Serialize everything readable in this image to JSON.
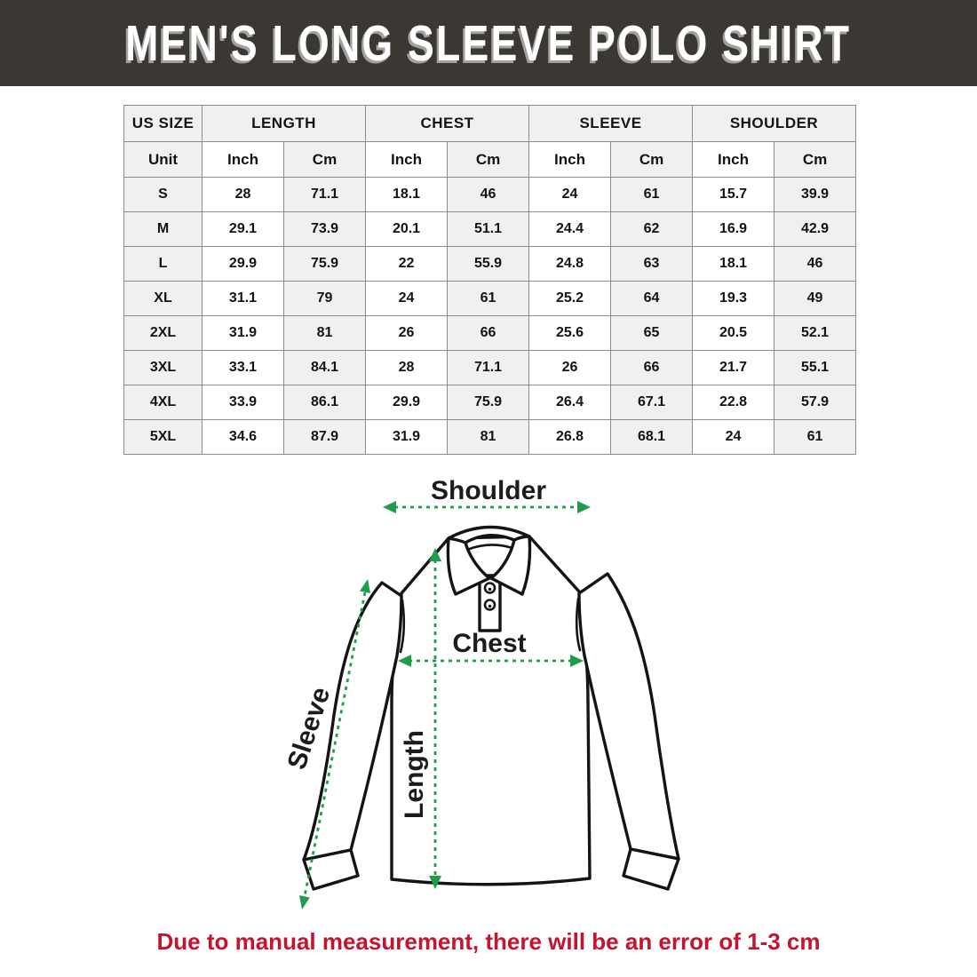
{
  "header": {
    "title": "MEN'S LONG SLEEVE POLO SHIRT"
  },
  "size_table": {
    "group_headers": [
      "US SIZE",
      "LENGTH",
      "CHEST",
      "SLEEVE",
      "SHOULDER"
    ],
    "unit_header": [
      "Unit",
      "Inch",
      "Cm",
      "Inch",
      "Cm",
      "Inch",
      "Cm",
      "Inch",
      "Cm"
    ],
    "rows": [
      [
        "S",
        "28",
        "71.1",
        "18.1",
        "46",
        "24",
        "61",
        "15.7",
        "39.9"
      ],
      [
        "M",
        "29.1",
        "73.9",
        "20.1",
        "51.1",
        "24.4",
        "62",
        "16.9",
        "42.9"
      ],
      [
        "L",
        "29.9",
        "75.9",
        "22",
        "55.9",
        "24.8",
        "63",
        "18.1",
        "46"
      ],
      [
        "XL",
        "31.1",
        "79",
        "24",
        "61",
        "25.2",
        "64",
        "19.3",
        "49"
      ],
      [
        "2XL",
        "31.9",
        "81",
        "26",
        "66",
        "25.6",
        "65",
        "20.5",
        "52.1"
      ],
      [
        "3XL",
        "33.1",
        "84.1",
        "28",
        "71.1",
        "26",
        "66",
        "21.7",
        "55.1"
      ],
      [
        "4XL",
        "33.9",
        "86.1",
        "29.9",
        "75.9",
        "26.4",
        "67.1",
        "22.8",
        "57.9"
      ],
      [
        "5XL",
        "34.6",
        "87.9",
        "31.9",
        "81",
        "26.8",
        "68.1",
        "24",
        "61"
      ]
    ]
  },
  "diagram": {
    "shoulder_label": "Shoulder",
    "chest_label": "Chest",
    "length_label": "Length",
    "sleeve_label": "Sleeve"
  },
  "footnote": {
    "text": "Due to manual measurement, there will be an error of 1-3 cm"
  },
  "colors": {
    "banner_bg": "#3b3834",
    "cell_gray": "#f0f0ee",
    "table_border": "#8c8c8c",
    "arrow_green": "#219c4c",
    "footnote_red": "#c4142e"
  }
}
